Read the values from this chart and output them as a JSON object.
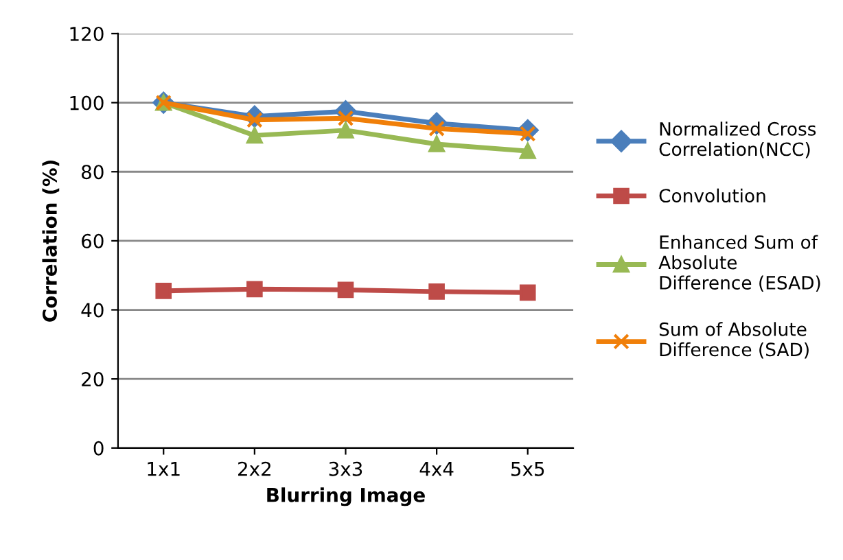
{
  "chart_data": {
    "type": "line",
    "xlabel": "Blurring Image",
    "ylabel": "Correlation (%)",
    "categories": [
      "1x1",
      "2x2",
      "3x3",
      "4x4",
      "5x5"
    ],
    "series": [
      {
        "name": "Normalized Cross Correlation(NCC)",
        "color": "#4a7ebb",
        "marker": "diamond",
        "values": [
          100,
          96,
          97.5,
          94,
          92
        ]
      },
      {
        "name": "Convolution",
        "color": "#be4b48",
        "marker": "square",
        "values": [
          45.5,
          46,
          45.8,
          45.3,
          45
        ]
      },
      {
        "name": "Enhanced Sum of Absolute Difference (ESAD)",
        "color": "#98b954",
        "marker": "triangle",
        "values": [
          100,
          90.5,
          92,
          88,
          86
        ]
      },
      {
        "name": "Sum of Absolute Difference (SAD)",
        "color": "#f07f09",
        "marker": "cross",
        "values": [
          100,
          95,
          95.5,
          92.5,
          91
        ]
      }
    ],
    "ylim": [
      0,
      120
    ],
    "yticks": [
      0,
      20,
      40,
      60,
      80,
      100,
      120
    ],
    "grid": "y",
    "legend": "right",
    "line_style": "solid"
  }
}
